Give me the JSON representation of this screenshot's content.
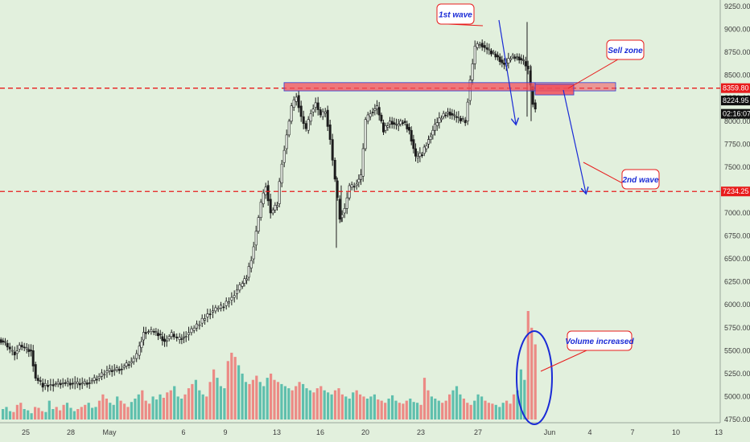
{
  "chart_data": {
    "type": "candlestick",
    "title": "",
    "xlabel": "",
    "ylabel": "",
    "ylim": [
      4750,
      9250
    ],
    "y_ticks": [
      "9250.00",
      "9000.00",
      "8750.00",
      "8500.00",
      "8250.00",
      "8000.00",
      "7750.00",
      "7500.00",
      "7250.00",
      "7000.00",
      "6750.00",
      "6500.00",
      "6250.00",
      "6000.00",
      "5750.00",
      "5500.00",
      "5250.00",
      "5000.00",
      "4750.00"
    ],
    "x_ticks": [
      "25",
      "28",
      "May",
      "6",
      "9",
      "13",
      "16",
      "20",
      "23",
      "27",
      "Jun",
      "4",
      "7",
      "10",
      "13"
    ],
    "grid": false,
    "trend_points": [
      [
        0,
        5620
      ],
      [
        8,
        5580
      ],
      [
        14,
        5500
      ],
      [
        20,
        5470
      ],
      [
        26,
        5560
      ],
      [
        32,
        5520
      ],
      [
        40,
        5500
      ],
      [
        46,
        5200
      ],
      [
        55,
        5120
      ],
      [
        65,
        5130
      ],
      [
        80,
        5150
      ],
      [
        95,
        5140
      ],
      [
        110,
        5150
      ],
      [
        122,
        5200
      ],
      [
        135,
        5280
      ],
      [
        150,
        5300
      ],
      [
        165,
        5380
      ],
      [
        172,
        5450
      ],
      [
        180,
        5700
      ],
      [
        190,
        5710
      ],
      [
        198,
        5680
      ],
      [
        206,
        5600
      ],
      [
        215,
        5680
      ],
      [
        222,
        5620
      ],
      [
        230,
        5650
      ],
      [
        240,
        5720
      ],
      [
        250,
        5800
      ],
      [
        260,
        5900
      ],
      [
        270,
        5950
      ],
      [
        280,
        5990
      ],
      [
        290,
        6080
      ],
      [
        300,
        6200
      ],
      [
        308,
        6300
      ],
      [
        314,
        6500
      ],
      [
        320,
        6800
      ],
      [
        326,
        7100
      ],
      [
        332,
        7300
      ],
      [
        338,
        7000
      ],
      [
        346,
        7100
      ],
      [
        352,
        7550
      ],
      [
        358,
        7850
      ],
      [
        364,
        8150
      ],
      [
        370,
        8280
      ],
      [
        376,
        8050
      ],
      [
        382,
        7900
      ],
      [
        388,
        8100
      ],
      [
        394,
        8200
      ],
      [
        400,
        8050
      ],
      [
        406,
        8120
      ],
      [
        412,
        7800
      ],
      [
        418,
        7350
      ],
      [
        424,
        6950
      ],
      [
        430,
        7050
      ],
      [
        436,
        7280
      ],
      [
        442,
        7300
      ],
      [
        450,
        7400
      ],
      [
        456,
        8000
      ],
      [
        462,
        8100
      ],
      [
        470,
        8150
      ],
      [
        478,
        7900
      ],
      [
        486,
        8000
      ],
      [
        494,
        7950
      ],
      [
        502,
        8000
      ],
      [
        510,
        7900
      ],
      [
        518,
        7600
      ],
      [
        526,
        7650
      ],
      [
        534,
        7800
      ],
      [
        542,
        7950
      ],
      [
        550,
        8050
      ],
      [
        558,
        8100
      ],
      [
        566,
        8050
      ],
      [
        574,
        8020
      ],
      [
        580,
        8000
      ],
      [
        586,
        8450
      ],
      [
        592,
        8800
      ],
      [
        598,
        8850
      ],
      [
        604,
        8800
      ],
      [
        612,
        8750
      ],
      [
        620,
        8700
      ],
      [
        628,
        8600
      ],
      [
        636,
        8700
      ],
      [
        644,
        8700
      ],
      [
        652,
        8650
      ],
      [
        658,
        8550
      ],
      [
        664,
        8200
      ],
      [
        668,
        8150
      ]
    ],
    "volume_bars": [
      25,
      30,
      20,
      18,
      35,
      40,
      25,
      22,
      15,
      30,
      28,
      20,
      18,
      45,
      25,
      30,
      22,
      35,
      40,
      28,
      20,
      25,
      30,
      35,
      40,
      28,
      30,
      45,
      60,
      50,
      40,
      35,
      55,
      45,
      38,
      30,
      42,
      50,
      60,
      70,
      45,
      38,
      55,
      48,
      60,
      52,
      65,
      70,
      80,
      55,
      50,
      60,
      75,
      85,
      95,
      70,
      60,
      55,
      90,
      120,
      100,
      80,
      75,
      140,
      160,
      150,
      130,
      110,
      90,
      85,
      95,
      105,
      90,
      80,
      100,
      110,
      95,
      90,
      85,
      80,
      75,
      70,
      80,
      90,
      85,
      75,
      70,
      65,
      75,
      80,
      70,
      65,
      60,
      70,
      75,
      60,
      55,
      50,
      65,
      70,
      60,
      55,
      50,
      55,
      60,
      48,
      45,
      40,
      50,
      58,
      45,
      40,
      38,
      45,
      50,
      42,
      40,
      35,
      100,
      70,
      55,
      50,
      45,
      40,
      45,
      60,
      70,
      80,
      60,
      50,
      40,
      35,
      45,
      60,
      55,
      45,
      40,
      38,
      35,
      30,
      40,
      45,
      38,
      60,
      70,
      120,
      95,
      260,
      220,
      180
    ],
    "annotations": [
      "1st wave",
      "Sell zone",
      "2nd wave",
      "Volume increased"
    ],
    "levels": [
      {
        "value": 8359.8,
        "label": "8359.80"
      },
      {
        "value": 7234.25,
        "label": "7234.25"
      }
    ],
    "price_tags": [
      {
        "value": 8224.95,
        "label": "8224.95"
      },
      {
        "value": 8080.0,
        "label": "02:16:07"
      }
    ]
  },
  "colors": {
    "background": "#e2f0dd",
    "bull": "#1d1d1d",
    "bear": "#1d1d1d",
    "volume_up": "#5fbfad",
    "volume_down": "#ec8a85",
    "level_line": "#e81c1c",
    "sell_zone": "#f14f5a",
    "arrow": "#1a2bd6",
    "callout_border": "#e81c1c"
  }
}
